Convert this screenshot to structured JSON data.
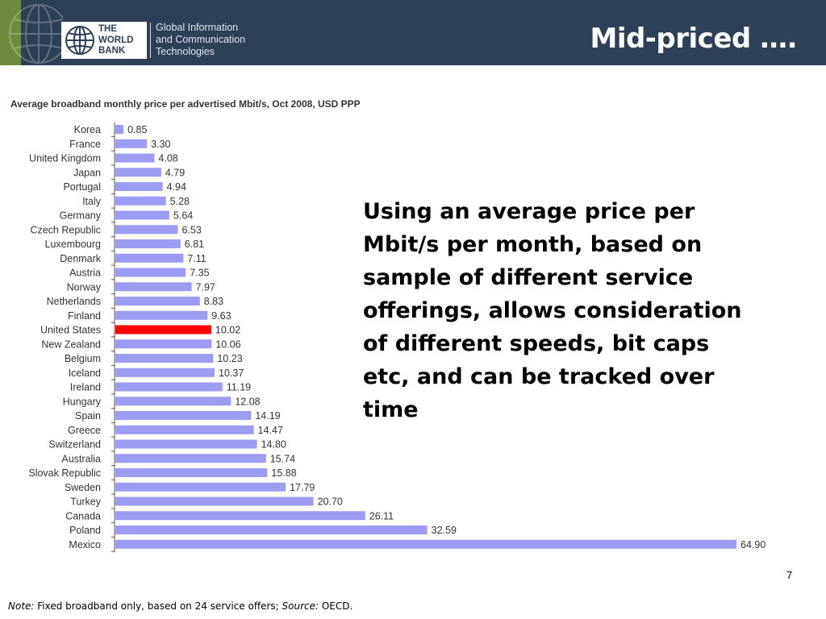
{
  "header": {
    "logo_lines": [
      "THE",
      "WORLD",
      "BANK"
    ],
    "unit_lines": [
      "Global Information",
      "and Communication",
      "Technologies"
    ],
    "slide_title": "Mid-priced …."
  },
  "body_text": "Using an average price per Mbit/s per month, based on sample of different service offerings, allows consideration of different speeds, bit caps etc, and can be tracked over time",
  "page_number": "7",
  "footnote": {
    "note_label": "Note:",
    "note_text": " Fixed broadband only, based on 24 service offers; ",
    "source_label": "Source:",
    "source_text": " OECD."
  },
  "colors": {
    "header_bg": "#2d4056",
    "bar": "#9c9cf2",
    "highlight": "#ff0000"
  },
  "chart_data": {
    "type": "bar",
    "orientation": "horizontal",
    "title": "Average broadband monthly price per advertised Mbit/s, Oct 2008, USD PPP",
    "categories": [
      "Korea",
      "France",
      "United Kingdom",
      "Japan",
      "Portugal",
      "Italy",
      "Germany",
      "Czech Republic",
      "Luxembourg",
      "Denmark",
      "Austria",
      "Norway",
      "Netherlands",
      "Finland",
      "United States",
      "New Zealand",
      "Belgium",
      "Iceland",
      "Ireland",
      "Hungary",
      "Spain",
      "Greece",
      "Switzerland",
      "Australia",
      "Slovak Republic",
      "Sweden",
      "Turkey",
      "Canada",
      "Poland",
      "Mexico"
    ],
    "values": [
      0.85,
      3.3,
      4.08,
      4.79,
      4.94,
      5.28,
      5.64,
      6.53,
      6.81,
      7.11,
      7.35,
      7.97,
      8.83,
      9.63,
      10.02,
      10.06,
      10.23,
      10.37,
      11.19,
      12.08,
      14.19,
      14.47,
      14.8,
      15.74,
      15.88,
      17.79,
      20.7,
      26.11,
      32.59,
      64.9
    ],
    "value_labels": [
      "0.85",
      "3.30",
      "4.08",
      "4.79",
      "4.94",
      "5.28",
      "5.64",
      "6.53",
      "6.81",
      "7.11",
      "7.35",
      "7.97",
      "8.83",
      "9.63",
      "10.02",
      "10.06",
      "10.23",
      "10.37",
      "11.19",
      "12.08",
      "14.19",
      "14.47",
      "14.80",
      "15.74",
      "15.88",
      "17.79",
      "20.70",
      "26.11",
      "32.59",
      "64.90"
    ],
    "highlight_category": "United States",
    "xlim": [
      0,
      64.9
    ],
    "grid": false,
    "legend": "none"
  }
}
